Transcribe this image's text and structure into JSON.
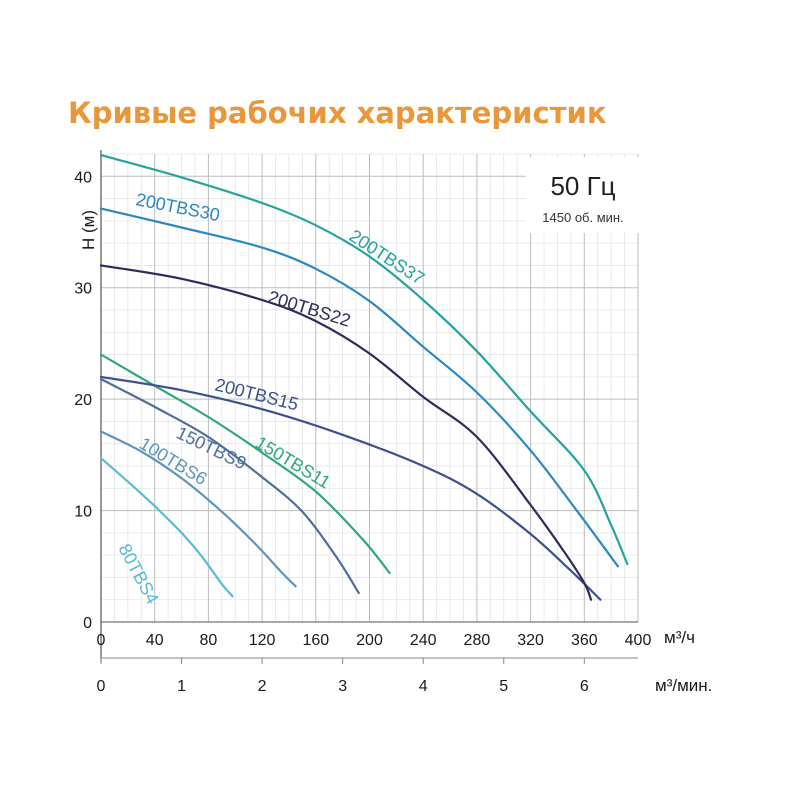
{
  "title": "Кривые рабочих характеристик",
  "frequency_label": "50 Гц",
  "speed_label": "1450 об. мин.",
  "chart_data": {
    "type": "line",
    "title": "Кривые рабочих характеристик",
    "ylabel": "Н (м)",
    "xlabel": "м³/ч",
    "x2label": "м³/мин.",
    "xlim": [
      0,
      400
    ],
    "ylim": [
      0,
      42
    ],
    "x_ticks": [
      "0",
      "40",
      "80",
      "120",
      "160",
      "200",
      "240",
      "280",
      "320",
      "360",
      "400"
    ],
    "y_ticks": [
      "0",
      "10",
      "20",
      "30",
      "40"
    ],
    "x2_ticks": [
      "0",
      "1",
      "2",
      "3",
      "4",
      "5",
      "6"
    ],
    "grid": true,
    "series": [
      {
        "name": "80TBS4",
        "color": "#5bbad5",
        "x": [
          0,
          20,
          40,
          60,
          75,
          90,
          98
        ],
        "y": [
          14.7,
          12.6,
          10.4,
          8.0,
          5.9,
          3.4,
          2.3
        ]
      },
      {
        "name": "100TBS6",
        "color": "#5f95bb",
        "x": [
          0,
          30,
          60,
          90,
          115,
          135,
          145
        ],
        "y": [
          17.1,
          15.3,
          12.9,
          9.9,
          7.0,
          4.4,
          3.2
        ]
      },
      {
        "name": "150TBS9",
        "color": "#4f6e9e",
        "x": [
          0,
          40,
          80,
          120,
          150,
          175,
          192
        ],
        "y": [
          21.8,
          19.3,
          16.6,
          13.0,
          9.9,
          5.9,
          2.6
        ]
      },
      {
        "name": "150TBS11",
        "color": "#2fa67e",
        "x": [
          0,
          40,
          80,
          120,
          160,
          195,
          215
        ],
        "y": [
          24.0,
          21.2,
          18.4,
          15.2,
          11.7,
          7.4,
          4.4
        ]
      },
      {
        "name": "200TBS15",
        "color": "#3e5090",
        "x": [
          0,
          60,
          120,
          180,
          240,
          280,
          320,
          350,
          372
        ],
        "y": [
          22.0,
          20.8,
          19.1,
          16.8,
          14.0,
          11.5,
          7.9,
          4.6,
          2.0
        ]
      },
      {
        "name": "200TBS22",
        "color": "#2b2d5c",
        "x": [
          0,
          60,
          120,
          160,
          200,
          240,
          280,
          320,
          345,
          360,
          365
        ],
        "y": [
          32.0,
          30.8,
          28.9,
          27.0,
          24.1,
          20.2,
          16.6,
          10.5,
          6.3,
          3.5,
          2.0
        ]
      },
      {
        "name": "200TBS30",
        "color": "#2a88c2",
        "x": [
          0,
          60,
          120,
          160,
          200,
          240,
          280,
          320,
          355,
          385
        ],
        "y": [
          37.1,
          35.4,
          33.6,
          31.7,
          28.8,
          24.7,
          20.6,
          15.4,
          9.9,
          5.0
        ]
      },
      {
        "name": "200TBS37",
        "color": "#25a39d",
        "x": [
          0,
          60,
          120,
          160,
          200,
          240,
          280,
          320,
          360,
          380,
          392
        ],
        "y": [
          41.9,
          39.9,
          37.6,
          35.6,
          32.8,
          28.9,
          24.3,
          18.9,
          13.6,
          8.7,
          5.2
        ]
      }
    ]
  }
}
